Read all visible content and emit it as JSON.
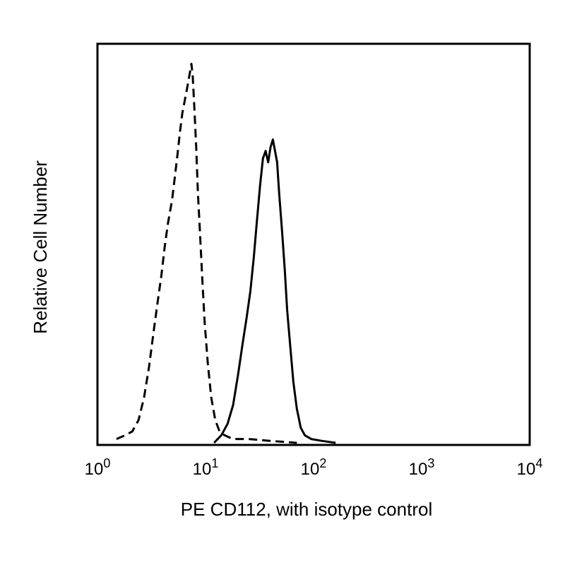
{
  "chart_data": {
    "type": "line",
    "title": "",
    "xlabel": "PE CD112, with isotype control",
    "ylabel": "Relative Cell Number",
    "x_scale": "log",
    "xlim": [
      1,
      10000
    ],
    "ylim": [
      0,
      1
    ],
    "grid": false,
    "x_ticks": [
      {
        "base": "10",
        "exp": "0",
        "value": 1
      },
      {
        "base": "10",
        "exp": "1",
        "value": 10
      },
      {
        "base": "10",
        "exp": "2",
        "value": 100
      },
      {
        "base": "10",
        "exp": "3",
        "value": 1000
      },
      {
        "base": "10",
        "exp": "4",
        "value": 10000
      }
    ],
    "series": [
      {
        "style": "dashed",
        "color": "#000000",
        "points": [
          [
            1.5,
            0.01
          ],
          [
            1.8,
            0.02
          ],
          [
            2.1,
            0.03
          ],
          [
            2.4,
            0.06
          ],
          [
            2.7,
            0.12
          ],
          [
            3.0,
            0.2
          ],
          [
            3.3,
            0.29
          ],
          [
            3.6,
            0.37
          ],
          [
            3.9,
            0.44
          ],
          [
            4.2,
            0.52
          ],
          [
            4.5,
            0.58
          ],
          [
            4.9,
            0.64
          ],
          [
            5.2,
            0.7
          ],
          [
            5.5,
            0.76
          ],
          [
            5.8,
            0.82
          ],
          [
            6.1,
            0.87
          ],
          [
            6.4,
            0.9
          ],
          [
            6.7,
            0.93
          ],
          [
            7.0,
            0.96
          ],
          [
            7.2,
            0.98
          ],
          [
            7.4,
            1.0
          ],
          [
            7.6,
            0.97
          ],
          [
            7.9,
            0.88
          ],
          [
            8.2,
            0.78
          ],
          [
            8.5,
            0.66
          ],
          [
            8.9,
            0.55
          ],
          [
            9.3,
            0.44
          ],
          [
            9.8,
            0.32
          ],
          [
            10.5,
            0.21
          ],
          [
            11.3,
            0.12
          ],
          [
            12.3,
            0.06
          ],
          [
            13.5,
            0.03
          ],
          [
            15,
            0.02
          ],
          [
            18,
            0.01
          ],
          [
            25,
            0.01
          ],
          [
            40,
            0.005
          ],
          [
            70,
            0.0
          ]
        ]
      },
      {
        "style": "solid",
        "color": "#000000",
        "points": [
          [
            12,
            0.0
          ],
          [
            14,
            0.02
          ],
          [
            16,
            0.05
          ],
          [
            18,
            0.1
          ],
          [
            20,
            0.18
          ],
          [
            22,
            0.26
          ],
          [
            24,
            0.33
          ],
          [
            26,
            0.4
          ],
          [
            28,
            0.49
          ],
          [
            30,
            0.59
          ],
          [
            32,
            0.68
          ],
          [
            34,
            0.75
          ],
          [
            36,
            0.77
          ],
          [
            38,
            0.74
          ],
          [
            40,
            0.78
          ],
          [
            42,
            0.8
          ],
          [
            44,
            0.77
          ],
          [
            46,
            0.74
          ],
          [
            48,
            0.66
          ],
          [
            51,
            0.56
          ],
          [
            54,
            0.46
          ],
          [
            57,
            0.35
          ],
          [
            61,
            0.25
          ],
          [
            65,
            0.16
          ],
          [
            70,
            0.09
          ],
          [
            76,
            0.04
          ],
          [
            83,
            0.02
          ],
          [
            95,
            0.01
          ],
          [
            120,
            0.005
          ],
          [
            160,
            0.0
          ]
        ]
      }
    ]
  }
}
